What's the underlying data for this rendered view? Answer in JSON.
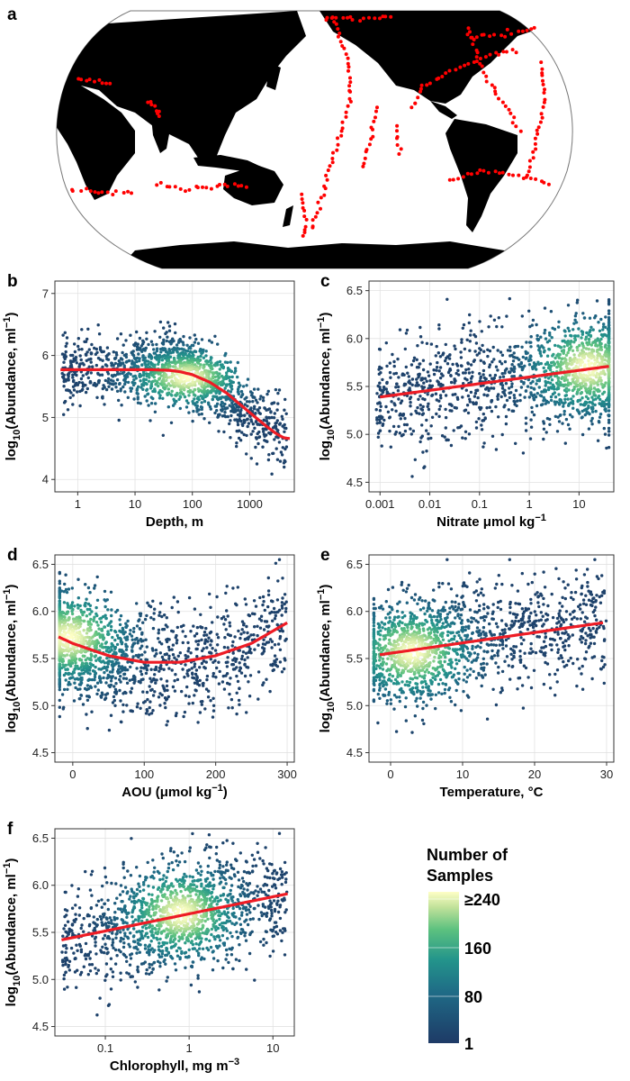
{
  "figure": {
    "panel_a_label": "a",
    "colors": {
      "land": "#000000",
      "ocean": "#ffffff",
      "stations": "#ff0000",
      "fit": "#ee1c25",
      "density_low": "#243e6b",
      "density_mid": "#23948b",
      "density_high": "#ffffc6"
    },
    "map": {
      "type": "world map (Robinson projection, Pacific-centred)",
      "marker": "sampling station"
    }
  },
  "legend": {
    "title_line1": "Number of",
    "title_line2": "Samples",
    "ticks": [
      "≥240",
      "160",
      "80",
      "1"
    ]
  },
  "chart_data": [
    {
      "panel": "b",
      "type": "scatter",
      "xlabel": "Depth, m",
      "ylabel_prefix": "log",
      "ylabel_sub": "10",
      "ylabel_main": "(Abundance, ml",
      "ylabel_sup": "−1",
      "ylabel_suffix": ")",
      "xscale": "log",
      "xlim": [
        0.4,
        6000
      ],
      "ylim": [
        3.8,
        7.2
      ],
      "xticks": [
        1,
        10,
        100,
        1000
      ],
      "xtick_labels": [
        "1",
        "10",
        "100",
        "1000"
      ],
      "yticks": [
        4,
        5,
        6,
        7
      ],
      "ytick_labels": [
        "4",
        "5",
        "6",
        "7"
      ],
      "fit": {
        "x": [
          0.5,
          1,
          5,
          10,
          20,
          40,
          60,
          100,
          200,
          400,
          700,
          1000,
          2000,
          3000,
          4000,
          5000
        ],
        "y": [
          5.77,
          5.77,
          5.77,
          5.77,
          5.77,
          5.76,
          5.74,
          5.69,
          5.57,
          5.39,
          5.2,
          5.08,
          4.85,
          4.73,
          4.67,
          4.66
        ]
      },
      "density_peak": {
        "x": 80,
        "y": 5.65
      }
    },
    {
      "panel": "c",
      "type": "scatter",
      "xlabel": "Nitrate μmol kg",
      "xlabel_sup": "−1",
      "ylabel_prefix": "log",
      "ylabel_sub": "10",
      "ylabel_main": "(Abundance, ml",
      "ylabel_sup": "−1",
      "ylabel_suffix": ")",
      "xscale": "log",
      "xlim": [
        0.0006,
        50
      ],
      "ylim": [
        4.4,
        6.6
      ],
      "xticks": [
        0.001,
        0.01,
        0.1,
        1,
        10
      ],
      "xtick_labels": [
        "0.001",
        "0.01",
        "0.1",
        "1",
        "10"
      ],
      "yticks": [
        4.5,
        5.0,
        5.5,
        6.0,
        6.5
      ],
      "ytick_labels": [
        "4.5",
        "5.0",
        "5.5",
        "6.0",
        "6.5"
      ],
      "fit": {
        "x": [
          0.001,
          40
        ],
        "y": [
          5.39,
          5.71
        ]
      },
      "density_peak": {
        "x": 15,
        "y": 5.7
      }
    },
    {
      "panel": "d",
      "type": "scatter",
      "xlabel": "AOU (μmol kg",
      "xlabel_sup": "−1",
      "xlabel_suffix": ")",
      "ylabel_prefix": "log",
      "ylabel_sub": "10",
      "ylabel_main": "(Abundance, ml",
      "ylabel_sup": "−1",
      "ylabel_suffix": ")",
      "xscale": "linear",
      "xlim": [
        -25,
        310
      ],
      "ylim": [
        4.4,
        6.6
      ],
      "xticks": [
        0,
        100,
        200,
        300
      ],
      "xtick_labels": [
        "0",
        "100",
        "200",
        "300"
      ],
      "yticks": [
        4.5,
        5.0,
        5.5,
        6.0,
        6.5
      ],
      "ytick_labels": [
        "4.5",
        "5.0",
        "5.5",
        "6.0",
        "6.5"
      ],
      "fit": {
        "x": [
          -20,
          0,
          50,
          100,
          150,
          200,
          250,
          300
        ],
        "y": [
          5.73,
          5.66,
          5.53,
          5.46,
          5.46,
          5.53,
          5.66,
          5.88
        ]
      },
      "density_peak": {
        "x": -5,
        "y": 5.72
      }
    },
    {
      "panel": "e",
      "type": "scatter",
      "xlabel": "Temperature, °C",
      "ylabel_prefix": "log",
      "ylabel_sub": "10",
      "ylabel_main": "(Abundance, ml",
      "ylabel_sup": "−1",
      "ylabel_suffix": ")",
      "xscale": "linear",
      "xlim": [
        -3,
        31
      ],
      "ylim": [
        4.4,
        6.6
      ],
      "xticks": [
        0,
        10,
        20,
        30
      ],
      "xtick_labels": [
        "0",
        "10",
        "20",
        "30"
      ],
      "yticks": [
        4.5,
        5.0,
        5.5,
        6.0,
        6.5
      ],
      "ytick_labels": [
        "4.5",
        "5.0",
        "5.5",
        "6.0",
        "6.5"
      ],
      "fit": {
        "x": [
          -1.5,
          29.5
        ],
        "y": [
          5.54,
          5.88
        ]
      },
      "density_peak": {
        "x": 3,
        "y": 5.57
      }
    },
    {
      "panel": "f",
      "type": "scatter",
      "xlabel": "Chlorophyll, mg m",
      "xlabel_sup": "−3",
      "ylabel_prefix": "log",
      "ylabel_sub": "10",
      "ylabel_main": "(Abundance, ml",
      "ylabel_sup": "−1",
      "ylabel_suffix": ")",
      "xscale": "log",
      "xlim": [
        0.025,
        18
      ],
      "ylim": [
        4.4,
        6.6
      ],
      "xticks": [
        0.1,
        1,
        10
      ],
      "xtick_labels": [
        "0.1",
        "1",
        "10"
      ],
      "yticks": [
        4.5,
        5.0,
        5.5,
        6.0,
        6.5
      ],
      "ytick_labels": [
        "4.5",
        "5.0",
        "5.5",
        "6.0",
        "6.5"
      ],
      "fit": {
        "x": [
          0.03,
          15
        ],
        "y": [
          5.42,
          5.91
        ]
      },
      "density_peak": {
        "x": 0.8,
        "y": 5.7
      }
    }
  ]
}
